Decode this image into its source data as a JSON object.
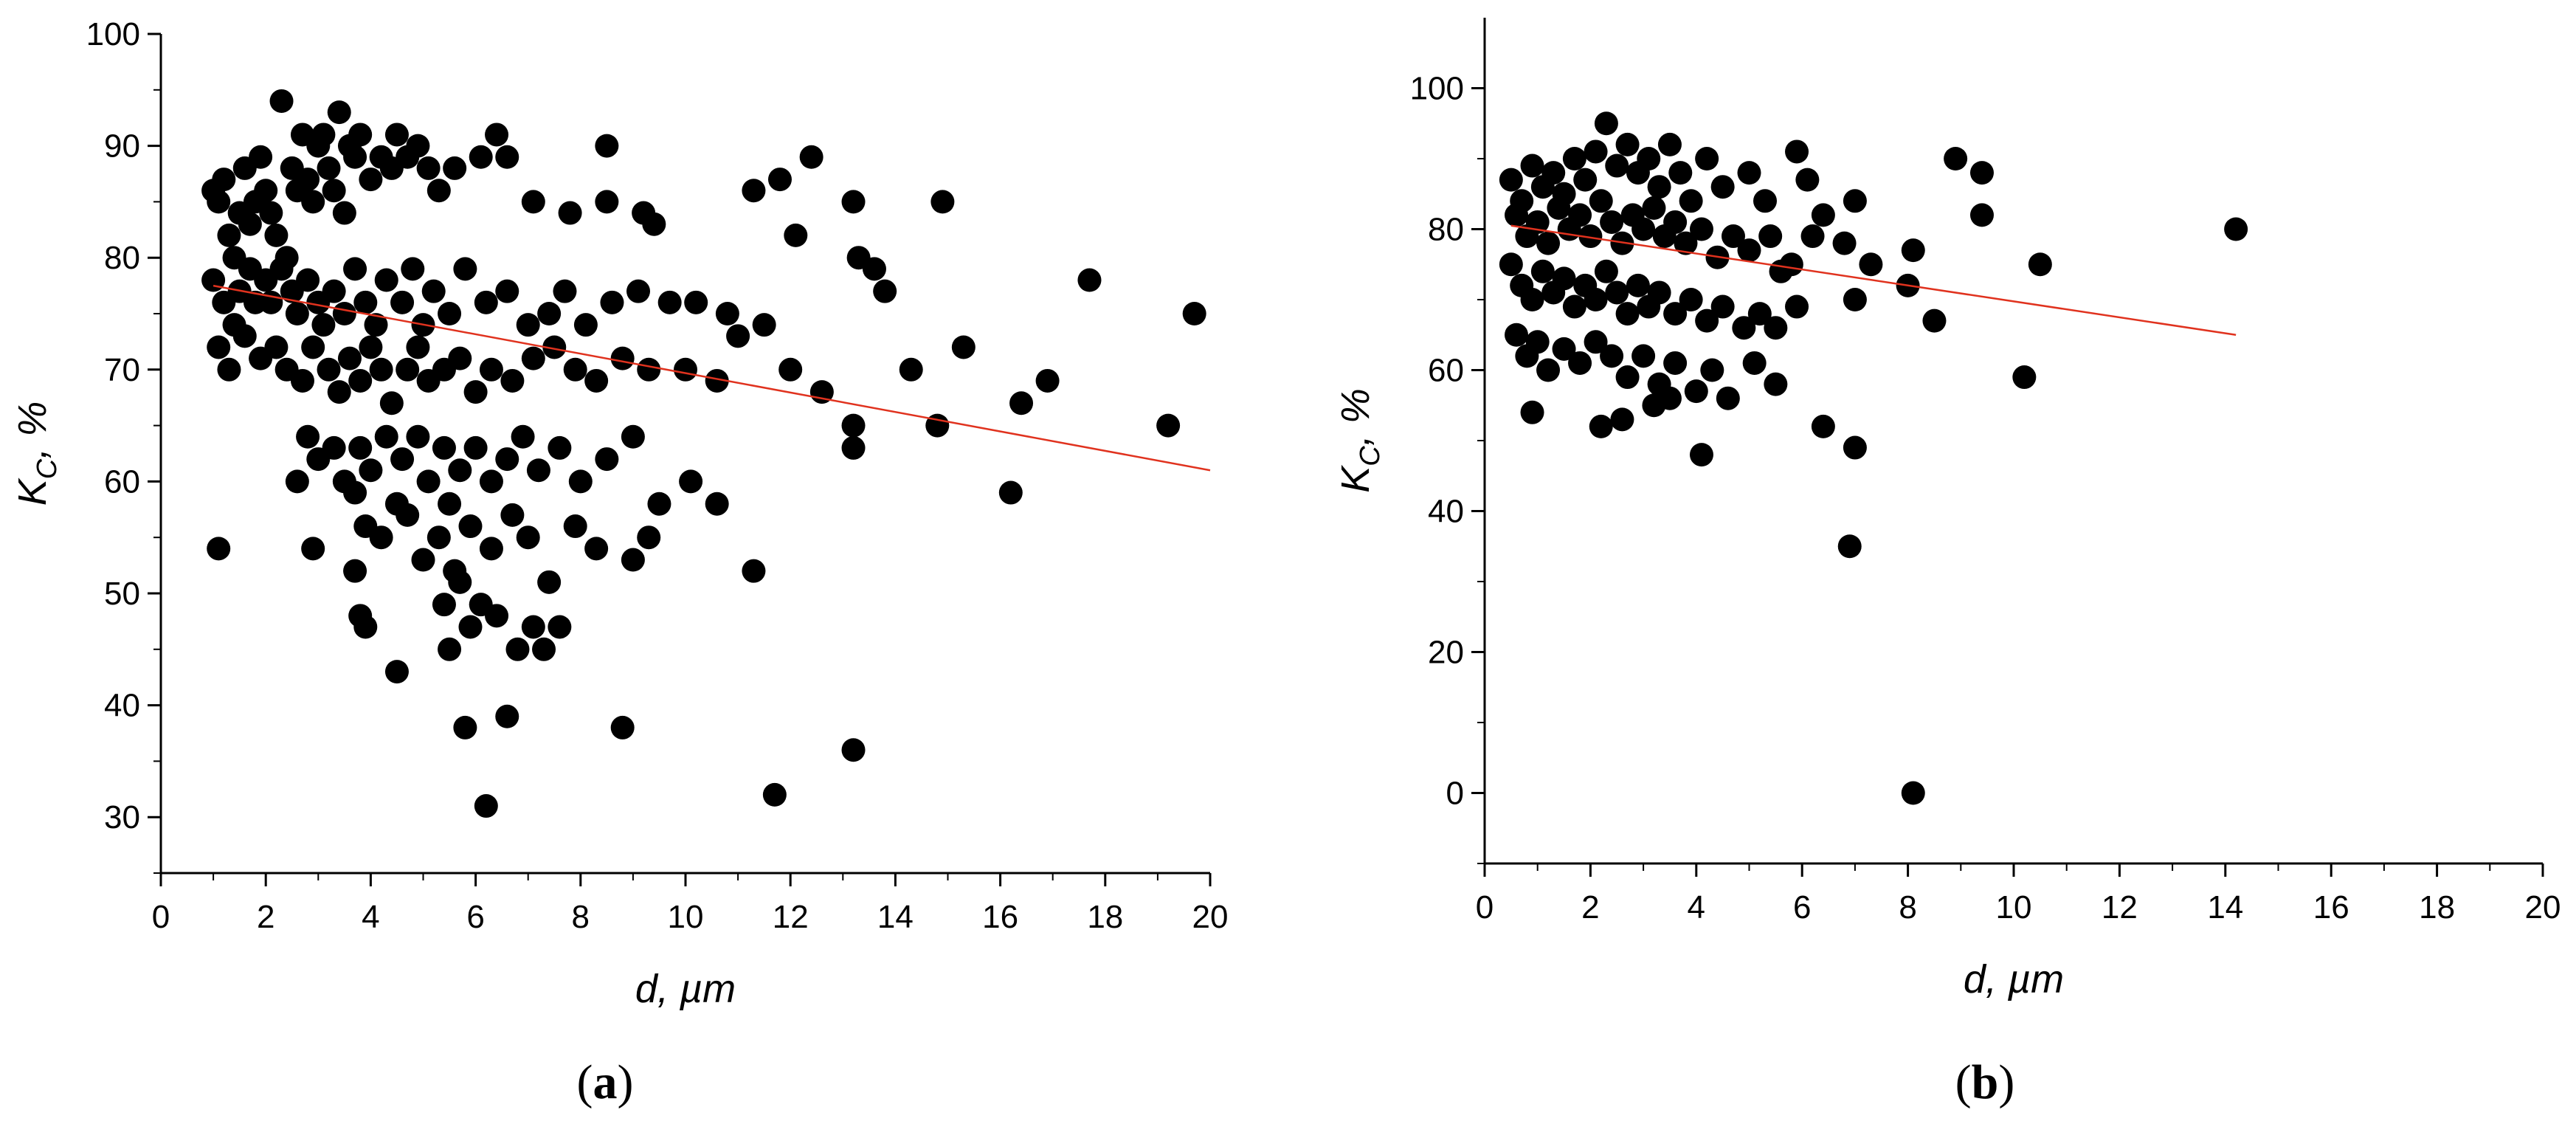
{
  "chart_data": [
    {
      "type": "scatter",
      "panel_label": "a",
      "xlabel": "d, µm",
      "ylabel": "Kc, %",
      "ylabel_main": "K",
      "ylabel_sub": "C",
      "ylabel_rest": ", %",
      "xlim": [
        0,
        20
      ],
      "ylim": [
        25,
        100
      ],
      "x_ticks": [
        0,
        2,
        4,
        6,
        8,
        10,
        12,
        14,
        16,
        18,
        20
      ],
      "y_ticks": [
        30,
        40,
        50,
        60,
        70,
        80,
        90,
        100
      ],
      "grid": false,
      "legend": "none",
      "marker_color": "#000000",
      "trendline": {
        "x": [
          1,
          20
        ],
        "y": [
          77.5,
          61
        ],
        "color": "#e0321e"
      },
      "points": [
        [
          1.0,
          86
        ],
        [
          1.1,
          85
        ],
        [
          1.2,
          87
        ],
        [
          1.3,
          82
        ],
        [
          1.4,
          80
        ],
        [
          1.5,
          84
        ],
        [
          1.6,
          88
        ],
        [
          1.7,
          83
        ],
        [
          1.8,
          85
        ],
        [
          1.9,
          89
        ],
        [
          2.0,
          86
        ],
        [
          2.1,
          84
        ],
        [
          2.2,
          82
        ],
        [
          2.3,
          94
        ],
        [
          2.4,
          80
        ],
        [
          2.5,
          88
        ],
        [
          2.6,
          86
        ],
        [
          2.7,
          91
        ],
        [
          2.8,
          87
        ],
        [
          2.9,
          85
        ],
        [
          3.0,
          90
        ],
        [
          3.1,
          91
        ],
        [
          3.2,
          88
        ],
        [
          3.3,
          86
        ],
        [
          3.4,
          93
        ],
        [
          3.5,
          84
        ],
        [
          3.6,
          90
        ],
        [
          3.7,
          89
        ],
        [
          3.8,
          91
        ],
        [
          4.0,
          87
        ],
        [
          4.2,
          89
        ],
        [
          4.4,
          88
        ],
        [
          4.5,
          91
        ],
        [
          4.7,
          89
        ],
        [
          4.9,
          90
        ],
        [
          5.1,
          88
        ],
        [
          5.3,
          86
        ],
        [
          5.6,
          88
        ],
        [
          6.1,
          89
        ],
        [
          6.4,
          91
        ],
        [
          6.6,
          89
        ],
        [
          7.1,
          85
        ],
        [
          7.8,
          84
        ],
        [
          8.5,
          90
        ],
        [
          8.5,
          85
        ],
        [
          9.2,
          84
        ],
        [
          9.4,
          83
        ],
        [
          11.3,
          86
        ],
        [
          11.8,
          87
        ],
        [
          12.4,
          89
        ],
        [
          12.1,
          82
        ],
        [
          13.2,
          85
        ],
        [
          13.3,
          80
        ],
        [
          13.6,
          79
        ],
        [
          14.9,
          85
        ],
        [
          17.7,
          78
        ],
        [
          19.7,
          75
        ],
        [
          15.3,
          72
        ],
        [
          14.3,
          70
        ],
        [
          1.0,
          78
        ],
        [
          1.2,
          76
        ],
        [
          1.4,
          74
        ],
        [
          1.5,
          77
        ],
        [
          1.7,
          79
        ],
        [
          1.8,
          76
        ],
        [
          2.0,
          78
        ],
        [
          2.1,
          76
        ],
        [
          2.3,
          79
        ],
        [
          2.5,
          77
        ],
        [
          2.6,
          75
        ],
        [
          2.8,
          78
        ],
        [
          3.0,
          76
        ],
        [
          3.1,
          74
        ],
        [
          3.3,
          77
        ],
        [
          3.5,
          75
        ],
        [
          3.7,
          79
        ],
        [
          3.9,
          76
        ],
        [
          4.1,
          74
        ],
        [
          4.3,
          78
        ],
        [
          4.6,
          76
        ],
        [
          4.8,
          79
        ],
        [
          5.0,
          74
        ],
        [
          5.2,
          77
        ],
        [
          5.5,
          75
        ],
        [
          5.8,
          79
        ],
        [
          6.2,
          76
        ],
        [
          6.6,
          77
        ],
        [
          7.0,
          74
        ],
        [
          7.4,
          75
        ],
        [
          7.7,
          77
        ],
        [
          8.1,
          74
        ],
        [
          8.6,
          76
        ],
        [
          9.1,
          77
        ],
        [
          9.7,
          76
        ],
        [
          10.2,
          76
        ],
        [
          10.8,
          75
        ],
        [
          11.5,
          74
        ],
        [
          12.0,
          70
        ],
        [
          13.8,
          77
        ],
        [
          1.1,
          72
        ],
        [
          1.3,
          70
        ],
        [
          1.6,
          73
        ],
        [
          1.9,
          71
        ],
        [
          2.2,
          72
        ],
        [
          2.4,
          70
        ],
        [
          2.7,
          69
        ],
        [
          2.9,
          72
        ],
        [
          3.2,
          70
        ],
        [
          3.4,
          68
        ],
        [
          3.6,
          71
        ],
        [
          3.8,
          69
        ],
        [
          4.0,
          72
        ],
        [
          4.2,
          70
        ],
        [
          4.4,
          67
        ],
        [
          4.7,
          70
        ],
        [
          4.9,
          72
        ],
        [
          5.1,
          69
        ],
        [
          5.4,
          70
        ],
        [
          5.7,
          71
        ],
        [
          6.0,
          68
        ],
        [
          6.3,
          70
        ],
        [
          6.7,
          69
        ],
        [
          7.1,
          71
        ],
        [
          7.5,
          72
        ],
        [
          7.9,
          70
        ],
        [
          8.3,
          69
        ],
        [
          8.8,
          71
        ],
        [
          9.3,
          70
        ],
        [
          10.0,
          70
        ],
        [
          10.6,
          69
        ],
        [
          11.0,
          73
        ],
        [
          12.6,
          68
        ],
        [
          16.4,
          67
        ],
        [
          16.9,
          69
        ],
        [
          19.2,
          65
        ],
        [
          14.8,
          65
        ],
        [
          13.2,
          65
        ],
        [
          13.2,
          63
        ],
        [
          16.2,
          59
        ],
        [
          2.8,
          64
        ],
        [
          3.0,
          62
        ],
        [
          3.3,
          63
        ],
        [
          3.5,
          60
        ],
        [
          3.8,
          63
        ],
        [
          4.0,
          61
        ],
        [
          4.3,
          64
        ],
        [
          4.6,
          62
        ],
        [
          4.9,
          64
        ],
        [
          5.1,
          60
        ],
        [
          5.4,
          63
        ],
        [
          5.7,
          61
        ],
        [
          6.0,
          63
        ],
        [
          6.3,
          60
        ],
        [
          6.6,
          62
        ],
        [
          6.9,
          64
        ],
        [
          7.2,
          61
        ],
        [
          7.6,
          63
        ],
        [
          8.0,
          60
        ],
        [
          8.5,
          62
        ],
        [
          9.0,
          64
        ],
        [
          9.5,
          58
        ],
        [
          10.1,
          60
        ],
        [
          10.6,
          58
        ],
        [
          2.6,
          60
        ],
        [
          3.7,
          59
        ],
        [
          4.5,
          58
        ],
        [
          5.5,
          58
        ],
        [
          3.9,
          56
        ],
        [
          4.2,
          55
        ],
        [
          4.7,
          57
        ],
        [
          5.0,
          53
        ],
        [
          5.3,
          55
        ],
        [
          5.6,
          52
        ],
        [
          5.9,
          56
        ],
        [
          6.3,
          54
        ],
        [
          6.7,
          57
        ],
        [
          7.0,
          55
        ],
        [
          7.4,
          51
        ],
        [
          7.9,
          56
        ],
        [
          8.3,
          54
        ],
        [
          9.0,
          53
        ],
        [
          9.3,
          55
        ],
        [
          2.9,
          54
        ],
        [
          1.1,
          54
        ],
        [
          11.3,
          52
        ],
        [
          3.7,
          52
        ],
        [
          3.8,
          48
        ],
        [
          3.9,
          47
        ],
        [
          5.4,
          49
        ],
        [
          5.7,
          51
        ],
        [
          5.9,
          47
        ],
        [
          6.1,
          49
        ],
        [
          6.4,
          48
        ],
        [
          6.8,
          45
        ],
        [
          7.1,
          47
        ],
        [
          7.3,
          45
        ],
        [
          7.6,
          47
        ],
        [
          5.5,
          45
        ],
        [
          4.5,
          43
        ],
        [
          5.8,
          38
        ],
        [
          6.6,
          39
        ],
        [
          8.8,
          38
        ],
        [
          13.2,
          36
        ],
        [
          6.2,
          31
        ],
        [
          11.7,
          32
        ]
      ]
    },
    {
      "type": "scatter",
      "panel_label": "b",
      "xlabel": "d, µm",
      "ylabel": "Kc, %",
      "ylabel_main": "K",
      "ylabel_sub": "C",
      "ylabel_rest": ", %",
      "xlim": [
        0,
        20
      ],
      "ylim": [
        -10,
        110
      ],
      "x_ticks": [
        0,
        2,
        4,
        6,
        8,
        10,
        12,
        14,
        16,
        18,
        20
      ],
      "y_ticks": [
        0,
        20,
        40,
        60,
        80,
        100
      ],
      "grid": false,
      "legend": "none",
      "marker_color": "#000000",
      "trendline": {
        "x": [
          0.5,
          14.2
        ],
        "y": [
          80.5,
          65
        ],
        "color": "#e0321e"
      },
      "points": [
        [
          0.5,
          87
        ],
        [
          0.7,
          84
        ],
        [
          0.9,
          89
        ],
        [
          1.1,
          86
        ],
        [
          1.3,
          88
        ],
        [
          1.5,
          85
        ],
        [
          1.7,
          90
        ],
        [
          1.9,
          87
        ],
        [
          2.1,
          91
        ],
        [
          2.3,
          95
        ],
        [
          2.5,
          89
        ],
        [
          2.7,
          92
        ],
        [
          2.9,
          88
        ],
        [
          3.1,
          90
        ],
        [
          3.3,
          86
        ],
        [
          3.5,
          92
        ],
        [
          3.7,
          88
        ],
        [
          3.9,
          84
        ],
        [
          4.2,
          90
        ],
        [
          4.5,
          86
        ],
        [
          5.0,
          88
        ],
        [
          5.3,
          84
        ],
        [
          5.9,
          91
        ],
        [
          6.1,
          87
        ],
        [
          6.4,
          82
        ],
        [
          6.8,
          78
        ],
        [
          8.9,
          90
        ],
        [
          9.4,
          88
        ],
        [
          9.4,
          82
        ],
        [
          14.2,
          80
        ],
        [
          0.6,
          82
        ],
        [
          0.8,
          79
        ],
        [
          1.0,
          81
        ],
        [
          1.2,
          78
        ],
        [
          1.4,
          83
        ],
        [
          1.6,
          80
        ],
        [
          1.8,
          82
        ],
        [
          2.0,
          79
        ],
        [
          2.2,
          84
        ],
        [
          2.4,
          81
        ],
        [
          2.6,
          78
        ],
        [
          2.8,
          82
        ],
        [
          3.0,
          80
        ],
        [
          3.2,
          83
        ],
        [
          3.4,
          79
        ],
        [
          3.6,
          81
        ],
        [
          3.8,
          78
        ],
        [
          4.1,
          80
        ],
        [
          4.4,
          76
        ],
        [
          4.7,
          79
        ],
        [
          5.0,
          77
        ],
        [
          5.4,
          79
        ],
        [
          5.8,
          75
        ],
        [
          6.2,
          79
        ],
        [
          7.0,
          84
        ],
        [
          7.3,
          75
        ],
        [
          8.1,
          77
        ],
        [
          10.5,
          75
        ],
        [
          5.6,
          74
        ],
        [
          7.0,
          70
        ],
        [
          0.5,
          75
        ],
        [
          0.7,
          72
        ],
        [
          0.9,
          70
        ],
        [
          1.1,
          74
        ],
        [
          1.3,
          71
        ],
        [
          1.5,
          73
        ],
        [
          1.7,
          69
        ],
        [
          1.9,
          72
        ],
        [
          2.1,
          70
        ],
        [
          2.3,
          74
        ],
        [
          2.5,
          71
        ],
        [
          2.7,
          68
        ],
        [
          2.9,
          72
        ],
        [
          3.1,
          69
        ],
        [
          3.3,
          71
        ],
        [
          3.6,
          68
        ],
        [
          3.9,
          70
        ],
        [
          4.2,
          67
        ],
        [
          4.5,
          69
        ],
        [
          4.9,
          66
        ],
        [
          5.2,
          68
        ],
        [
          5.5,
          66
        ],
        [
          5.9,
          69
        ],
        [
          8.0,
          72
        ],
        [
          8.5,
          67
        ],
        [
          0.6,
          65
        ],
        [
          0.8,
          62
        ],
        [
          1.0,
          64
        ],
        [
          1.2,
          60
        ],
        [
          1.5,
          63
        ],
        [
          1.8,
          61
        ],
        [
          2.1,
          64
        ],
        [
          2.4,
          62
        ],
        [
          2.7,
          59
        ],
        [
          3.0,
          62
        ],
        [
          3.3,
          58
        ],
        [
          3.6,
          61
        ],
        [
          4.0,
          57
        ],
        [
          4.3,
          60
        ],
        [
          4.6,
          56
        ],
        [
          5.1,
          61
        ],
        [
          5.5,
          58
        ],
        [
          0.9,
          54
        ],
        [
          2.2,
          52
        ],
        [
          2.6,
          53
        ],
        [
          3.2,
          55
        ],
        [
          3.5,
          56
        ],
        [
          4.1,
          48
        ],
        [
          10.2,
          59
        ],
        [
          6.4,
          52
        ],
        [
          7.0,
          49
        ],
        [
          6.9,
          35
        ],
        [
          8.1,
          0
        ]
      ]
    }
  ]
}
